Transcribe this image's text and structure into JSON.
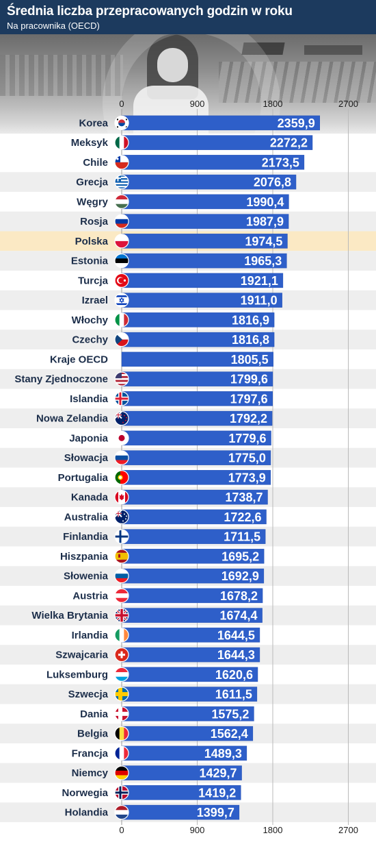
{
  "header": {
    "title": "Średnia liczba przepracowanych godzin w roku",
    "subtitle": "Na pracownika (OECD)"
  },
  "colors": {
    "header_bg": "#1c3a5e",
    "bar": "#2e5fc9",
    "bar_edge": "#2451b4",
    "highlight_row": "#fbe9c4",
    "stripe": "#eeeeee",
    "label": "#1c2e4a"
  },
  "chart_data": {
    "type": "bar",
    "orientation": "horizontal",
    "title": "Średnia liczba przepracowanych godzin w roku",
    "subtitle": "Na pracownika (OECD)",
    "xlim": [
      0,
      2700
    ],
    "xticks": [
      0,
      900,
      1800,
      2700
    ],
    "xtick_labels": [
      "0",
      "900",
      "1800",
      "2700"
    ],
    "grid": true,
    "highlight": "Polska",
    "categories": [
      "Korea",
      "Meksyk",
      "Chile",
      "Grecja",
      "Węgry",
      "Rosja",
      "Polska",
      "Estonia",
      "Turcja",
      "Izrael",
      "Włochy",
      "Czechy",
      "Kraje OECD",
      "Stany Zjednoczone",
      "Islandia",
      "Nowa Zelandia",
      "Japonia",
      "Słowacja",
      "Portugalia",
      "Kanada",
      "Australia",
      "Finlandia",
      "Hiszpania",
      "Słowenia",
      "Austria",
      "Wielka Brytania",
      "Irlandia",
      "Szwajcaria",
      "Luksemburg",
      "Szwecja",
      "Dania",
      "Belgia",
      "Francja",
      "Niemcy",
      "Norwegia",
      "Holandia"
    ],
    "values": [
      2359.9,
      2272.2,
      2173.5,
      2076.8,
      1990.4,
      1987.9,
      1974.5,
      1965.3,
      1921.1,
      1911.0,
      1816.9,
      1816.8,
      1805.5,
      1799.6,
      1797.6,
      1792.2,
      1779.6,
      1775.0,
      1773.9,
      1738.7,
      1722.6,
      1711.5,
      1695.2,
      1692.9,
      1678.2,
      1674.4,
      1644.5,
      1644.3,
      1620.6,
      1611.5,
      1575.2,
      1562.4,
      1489.3,
      1429.7,
      1419.2,
      1399.7
    ],
    "value_labels": [
      "2359,9",
      "2272,2",
      "2173,5",
      "2076,8",
      "1990,4",
      "1987,9",
      "1974,5",
      "1965,3",
      "1921,1",
      "1911,0",
      "1816,9",
      "1816,8",
      "1805,5",
      "1799,6",
      "1797,6",
      "1792,2",
      "1779,6",
      "1775,0",
      "1773,9",
      "1738,7",
      "1722,6",
      "1711,5",
      "1695,2",
      "1692,9",
      "1678,2",
      "1674,4",
      "1644,5",
      "1644,3",
      "1620,6",
      "1611,5",
      "1575,2",
      "1562,4",
      "1489,3",
      "1429,7",
      "1419,2",
      "1399,7"
    ],
    "flags": [
      {
        "icon": "south-korea-flag-icon",
        "kind": "korea"
      },
      {
        "icon": "mexico-flag-icon",
        "kind": "v",
        "colors": [
          "#006847",
          "#ffffff",
          "#ce1126"
        ]
      },
      {
        "icon": "chile-flag-icon",
        "kind": "chile"
      },
      {
        "icon": "greece-flag-icon",
        "kind": "greece"
      },
      {
        "icon": "hungary-flag-icon",
        "kind": "h",
        "colors": [
          "#ce2939",
          "#ffffff",
          "#477050"
        ]
      },
      {
        "icon": "russia-flag-icon",
        "kind": "h",
        "colors": [
          "#ffffff",
          "#0039a6",
          "#d52b1e"
        ]
      },
      {
        "icon": "poland-flag-icon",
        "kind": "h",
        "colors": [
          "#ffffff",
          "#dc143c"
        ]
      },
      {
        "icon": "estonia-flag-icon",
        "kind": "h",
        "colors": [
          "#0072ce",
          "#000000",
          "#ffffff"
        ]
      },
      {
        "icon": "turkey-flag-icon",
        "kind": "turkey"
      },
      {
        "icon": "israel-flag-icon",
        "kind": "israel"
      },
      {
        "icon": "italy-flag-icon",
        "kind": "v",
        "colors": [
          "#009246",
          "#ffffff",
          "#ce2b37"
        ]
      },
      {
        "icon": "czechia-flag-icon",
        "kind": "czech"
      },
      {
        "icon": "",
        "kind": "none"
      },
      {
        "icon": "usa-flag-icon",
        "kind": "usa"
      },
      {
        "icon": "iceland-flag-icon",
        "kind": "nordic",
        "colors": [
          "#02529c",
          "#ffffff",
          "#dc1e35"
        ]
      },
      {
        "icon": "new-zealand-flag-icon",
        "kind": "anzac",
        "colors": [
          "#012169",
          "#cc142b"
        ]
      },
      {
        "icon": "japan-flag-icon",
        "kind": "japan"
      },
      {
        "icon": "slovakia-flag-icon",
        "kind": "h",
        "colors": [
          "#ffffff",
          "#0b4ea2",
          "#ee1c25"
        ]
      },
      {
        "icon": "portugal-flag-icon",
        "kind": "portugal"
      },
      {
        "icon": "canada-flag-icon",
        "kind": "canada"
      },
      {
        "icon": "australia-flag-icon",
        "kind": "anzac",
        "colors": [
          "#012169",
          "#ffffff"
        ]
      },
      {
        "icon": "finland-flag-icon",
        "kind": "nordic",
        "colors": [
          "#ffffff",
          "#ffffff",
          "#003580"
        ]
      },
      {
        "icon": "spain-flag-icon",
        "kind": "spain"
      },
      {
        "icon": "slovenia-flag-icon",
        "kind": "h",
        "colors": [
          "#ffffff",
          "#005da4",
          "#ed1c24"
        ]
      },
      {
        "icon": "austria-flag-icon",
        "kind": "h",
        "colors": [
          "#ed2939",
          "#ffffff",
          "#ed2939"
        ]
      },
      {
        "icon": "uk-flag-icon",
        "kind": "uk"
      },
      {
        "icon": "ireland-flag-icon",
        "kind": "v",
        "colors": [
          "#169b62",
          "#ffffff",
          "#ff883e"
        ]
      },
      {
        "icon": "switzerland-flag-icon",
        "kind": "swiss"
      },
      {
        "icon": "luxembourg-flag-icon",
        "kind": "h",
        "colors": [
          "#ed2939",
          "#ffffff",
          "#00a1de"
        ]
      },
      {
        "icon": "sweden-flag-icon",
        "kind": "nordic",
        "colors": [
          "#006aa7",
          "#fecc00",
          "#fecc00"
        ]
      },
      {
        "icon": "denmark-flag-icon",
        "kind": "nordic",
        "colors": [
          "#c8102e",
          "#ffffff",
          "#ffffff"
        ]
      },
      {
        "icon": "belgium-flag-icon",
        "kind": "v",
        "colors": [
          "#000000",
          "#fae042",
          "#ed2939"
        ]
      },
      {
        "icon": "france-flag-icon",
        "kind": "v",
        "colors": [
          "#002395",
          "#ffffff",
          "#ed2939"
        ]
      },
      {
        "icon": "germany-flag-icon",
        "kind": "h",
        "colors": [
          "#000000",
          "#dd0000",
          "#ffce00"
        ]
      },
      {
        "icon": "norway-flag-icon",
        "kind": "nordic",
        "colors": [
          "#ba0c2f",
          "#ffffff",
          "#00205b"
        ]
      },
      {
        "icon": "netherlands-flag-icon",
        "kind": "h",
        "colors": [
          "#ae1c28",
          "#ffffff",
          "#21468b"
        ]
      }
    ]
  }
}
